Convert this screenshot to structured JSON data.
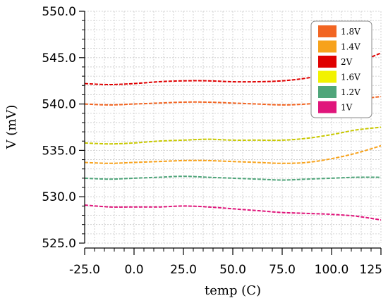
{
  "chart_data": {
    "type": "line",
    "xlabel": "temp (C)",
    "ylabel": "V (mV)",
    "xlim": [
      -25,
      125
    ],
    "ylim": [
      525,
      550
    ],
    "x_ticks": [
      "-25.0",
      "0.0",
      "25.0",
      "50.0",
      "75.0",
      "100.0",
      "125"
    ],
    "y_ticks": [
      "525.0",
      "530.0",
      "535.0",
      "540.0",
      "545.0",
      "550.0"
    ],
    "grid": true,
    "legend_position": "top-right",
    "x": [
      -25,
      -12.5,
      0,
      12.5,
      25,
      37.5,
      50,
      62.5,
      75,
      87.5,
      100,
      112.5,
      125
    ],
    "series": [
      {
        "name": "1.8V",
        "color": "#F26522",
        "values": [
          540.0,
          539.9,
          540.0,
          540.1,
          540.2,
          540.2,
          540.1,
          540.0,
          539.9,
          540.0,
          540.2,
          540.5,
          540.8
        ]
      },
      {
        "name": "1.4V",
        "color": "#F7A21B",
        "values": [
          533.7,
          533.6,
          533.7,
          533.8,
          533.9,
          533.9,
          533.8,
          533.7,
          533.6,
          533.7,
          534.1,
          534.7,
          535.5
        ]
      },
      {
        "name": "2V",
        "color": "#E00000",
        "values": [
          542.2,
          542.1,
          542.2,
          542.4,
          542.5,
          542.5,
          542.4,
          542.4,
          542.5,
          542.8,
          543.4,
          544.4,
          545.5
        ]
      },
      {
        "name": "1.6V",
        "color": "#C8C800",
        "values": [
          535.8,
          535.7,
          535.8,
          536.0,
          536.1,
          536.2,
          536.1,
          536.1,
          536.1,
          536.3,
          536.7,
          537.2,
          537.5
        ]
      },
      {
        "name": "1.2V",
        "color": "#4FA57A",
        "values": [
          532.0,
          531.9,
          532.0,
          532.1,
          532.2,
          532.1,
          532.0,
          531.9,
          531.8,
          531.9,
          532.0,
          532.1,
          532.1
        ]
      },
      {
        "name": "1V",
        "color": "#E0157B",
        "values": [
          529.1,
          528.9,
          528.9,
          528.9,
          529.0,
          528.9,
          528.7,
          528.5,
          528.3,
          528.2,
          528.1,
          527.9,
          527.5
        ]
      }
    ],
    "legend_swatch_colors": [
      "#F26522",
      "#F7A21B",
      "#E00000",
      "#F2F200",
      "#4FA57A",
      "#E0157B"
    ]
  }
}
